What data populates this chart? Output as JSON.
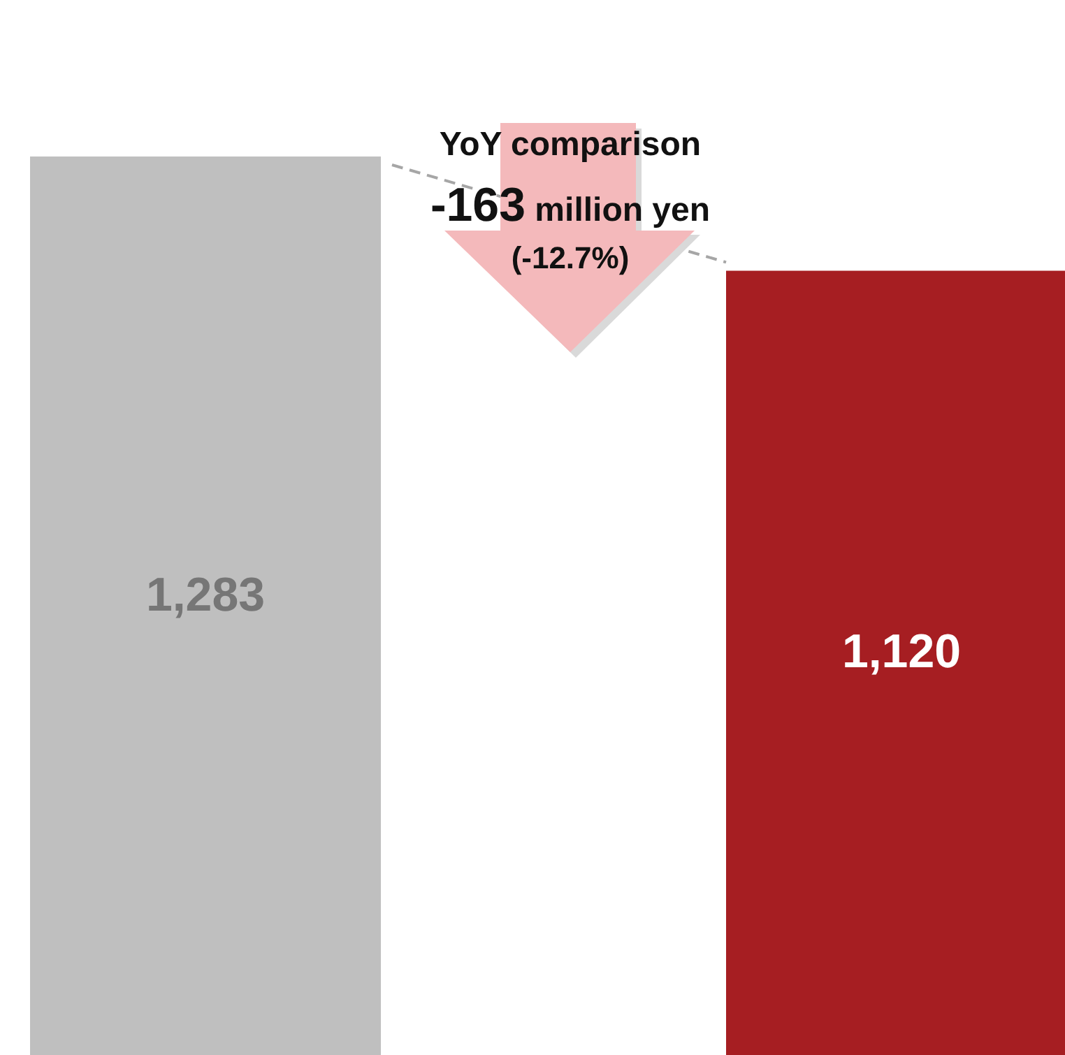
{
  "chart_data": {
    "type": "bar",
    "categories": [
      null,
      null
    ],
    "values": [
      1283,
      1120
    ],
    "colors": [
      "#bfbfbf",
      "#a61e22"
    ],
    "value_labels": [
      "1,283",
      "1,120"
    ],
    "annotations": [
      "YoY comparison",
      "-163 million yen",
      "(-12.7%)"
    ]
  }
}
